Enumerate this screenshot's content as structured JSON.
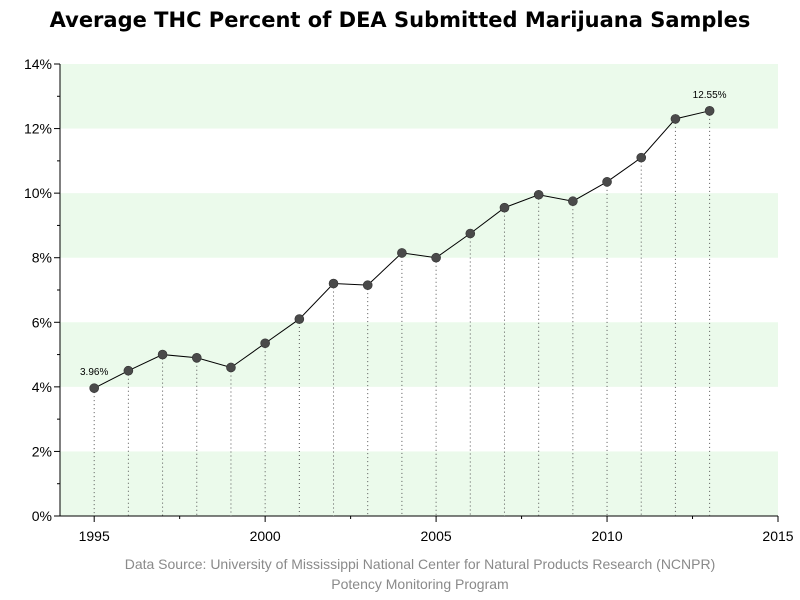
{
  "title": "Average THC Percent of DEA Submitted Marijuana Samples",
  "source": {
    "line1": "Data Source: University of Mississippi National Center for Natural Products Research (NCNPR)",
    "line2": "Potency Monitoring Program"
  },
  "colors": {
    "band": "#ebfaeb",
    "line": "#000000",
    "marker": "#4a4a4a",
    "drop_line": "#555555",
    "axis": "#000000"
  },
  "chart_data": {
    "type": "line",
    "title": "Average THC Percent of DEA Submitted Marijuana Samples",
    "xlabel": "",
    "ylabel": "",
    "xlim": [
      1994,
      2015
    ],
    "ylim": [
      0,
      14
    ],
    "x_ticks": [
      1995,
      2000,
      2005,
      2010,
      2015
    ],
    "y_ticks": [
      0,
      2,
      4,
      6,
      8,
      10,
      12,
      14
    ],
    "y_tick_labels": [
      "0%",
      "2%",
      "4%",
      "6%",
      "8%",
      "10%",
      "12%",
      "14%"
    ],
    "bands": [
      [
        0,
        2
      ],
      [
        4,
        6
      ],
      [
        8,
        10
      ],
      [
        12,
        14
      ]
    ],
    "drop_lines": true,
    "legend": "none",
    "series": [
      {
        "x": [
          1995,
          1996,
          1997,
          1998,
          1999,
          2000,
          2001,
          2002,
          2003,
          2004,
          2005,
          2006,
          2007,
          2008,
          2009,
          2010,
          2011,
          2012,
          2013
        ],
        "y": [
          3.96,
          4.5,
          5.0,
          4.9,
          4.6,
          5.35,
          6.1,
          7.2,
          7.15,
          8.15,
          8.0,
          8.75,
          9.55,
          9.95,
          9.75,
          10.35,
          11.1,
          12.3,
          12.55
        ]
      }
    ],
    "annotations": [
      {
        "x": 1995,
        "y": 3.96,
        "text": "3.96%"
      },
      {
        "x": 2013,
        "y": 12.55,
        "text": "12.55%"
      }
    ]
  }
}
